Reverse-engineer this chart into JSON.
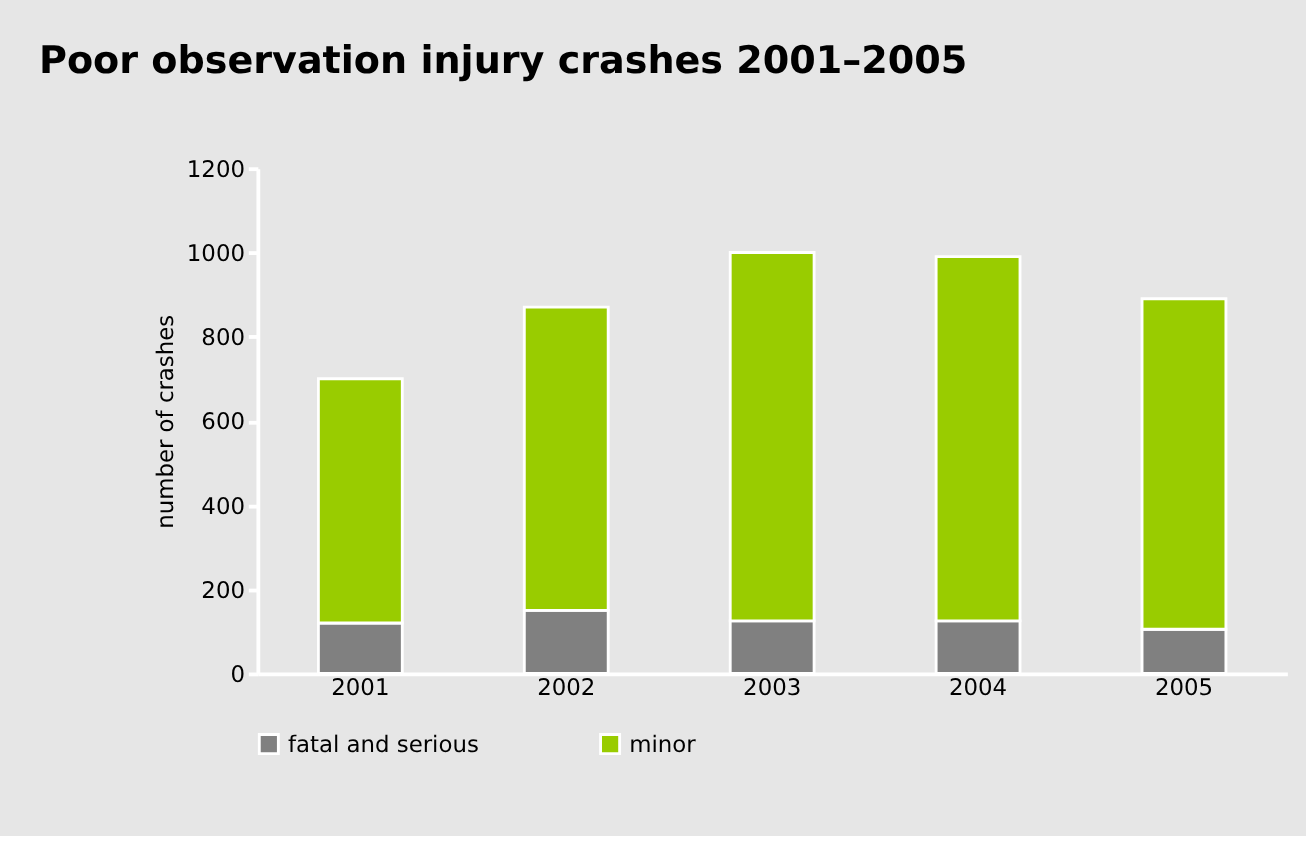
{
  "chart_data": {
    "type": "bar",
    "title": "Poor observation injury crashes 2001–2005",
    "ylabel": "number of crashes",
    "categories": [
      "2001",
      "2002",
      "2003",
      "2004",
      "2005"
    ],
    "series": [
      {
        "name": "fatal and serious",
        "color": "#808080",
        "values": [
          120,
          150,
          125,
          125,
          105
        ]
      },
      {
        "name": "minor",
        "color": "#99cc00",
        "values": [
          580,
          720,
          875,
          865,
          785
        ]
      }
    ],
    "stacked": true,
    "ylim": [
      0,
      1200
    ],
    "yticks": [
      0,
      200,
      400,
      600,
      800,
      1000,
      1200
    ],
    "grid": false,
    "legend": "bottom"
  }
}
